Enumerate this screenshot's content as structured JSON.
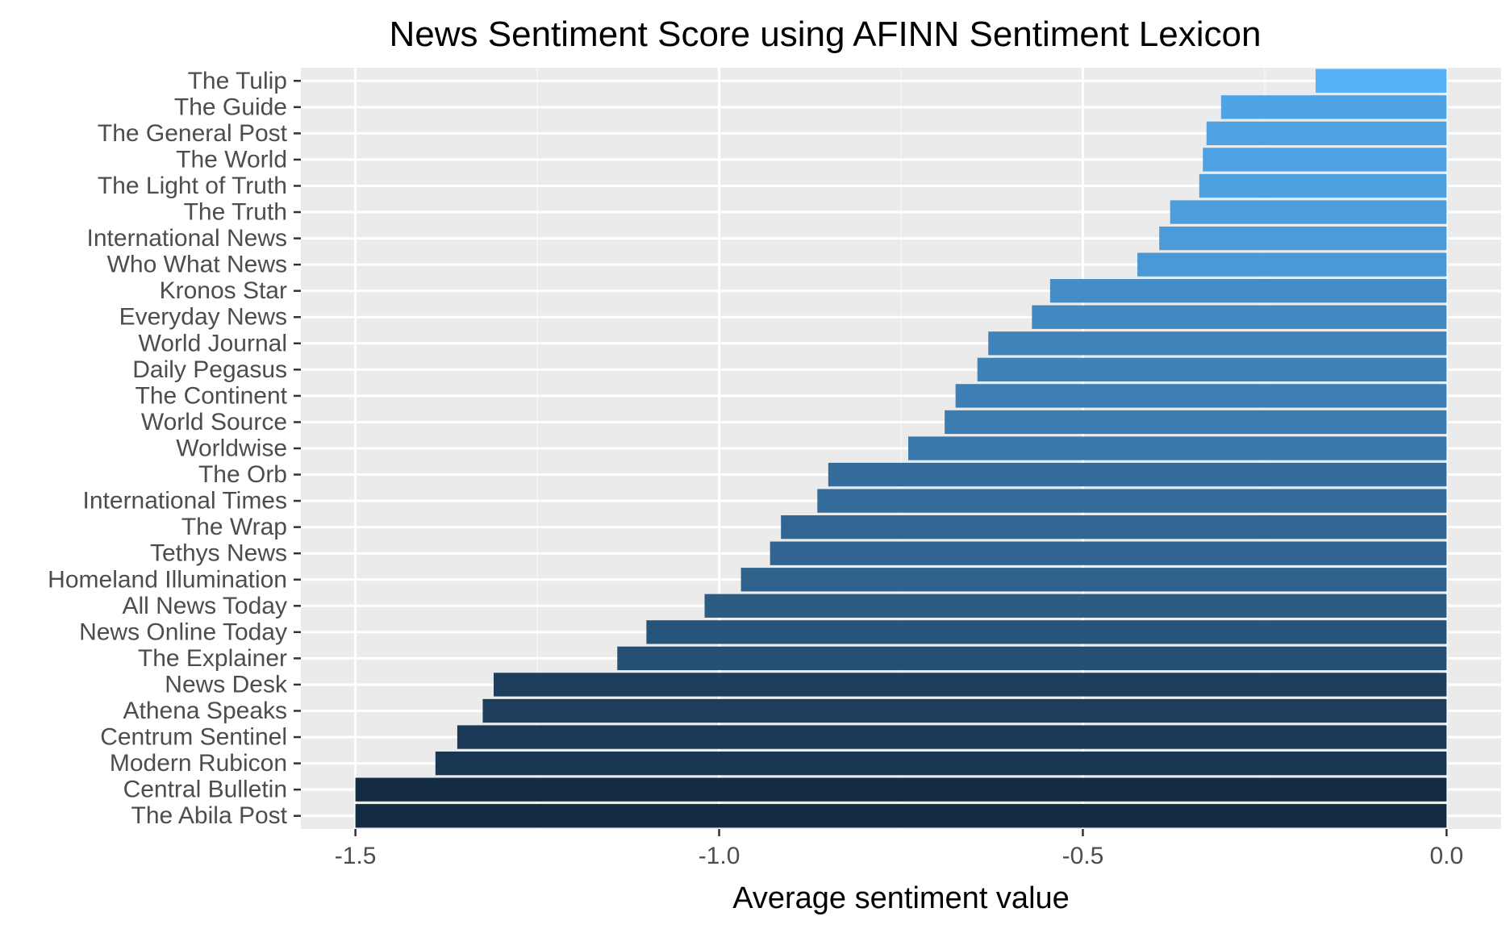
{
  "chart_data": {
    "type": "bar",
    "orientation": "horizontal",
    "title": "News Sentiment Score using AFINN Sentiment Lexicon",
    "xlabel": "Average sentiment value",
    "ylabel": "",
    "xlim": [
      -1.575,
      0.075
    ],
    "xticks": [
      -1.5,
      -1.0,
      -0.5,
      0.0
    ],
    "xtick_labels": [
      "-1.5",
      "-1.0",
      "-0.5",
      "0.0"
    ],
    "grid": true,
    "legend": "none",
    "categories": [
      "The Tulip",
      "The Guide",
      "The General Post",
      "The World",
      "The Light of Truth",
      "The Truth",
      "International News",
      "Who What News",
      "Kronos Star",
      "Everyday News",
      "World Journal",
      "Daily Pegasus",
      "The Continent",
      "World Source",
      "Worldwise",
      "The Orb",
      "International Times",
      "The Wrap",
      "Tethys News",
      "Homeland Illumination",
      "All News Today",
      "News Online Today",
      "The Explainer",
      "News Desk",
      "Athena Speaks",
      "Centrum Sentinel",
      "Modern Rubicon",
      "Central Bulletin",
      "The Abila Post"
    ],
    "values": [
      -0.18,
      -0.31,
      -0.33,
      -0.335,
      -0.34,
      -0.38,
      -0.395,
      -0.425,
      -0.545,
      -0.57,
      -0.63,
      -0.645,
      -0.675,
      -0.69,
      -0.74,
      -0.85,
      -0.865,
      -0.915,
      -0.93,
      -0.97,
      -1.02,
      -1.1,
      -1.14,
      -1.31,
      -1.325,
      -1.36,
      -1.39,
      -1.5,
      -1.5
    ],
    "colors": {
      "fill_high": "#56b1f7",
      "fill_low": "#132b43",
      "panel_background": "#ebebeb",
      "grid_major": "#ffffff",
      "grid_minor": "#f5f5f5",
      "tick_text": "#4d4d4d",
      "tick_mark": "#333333"
    }
  }
}
